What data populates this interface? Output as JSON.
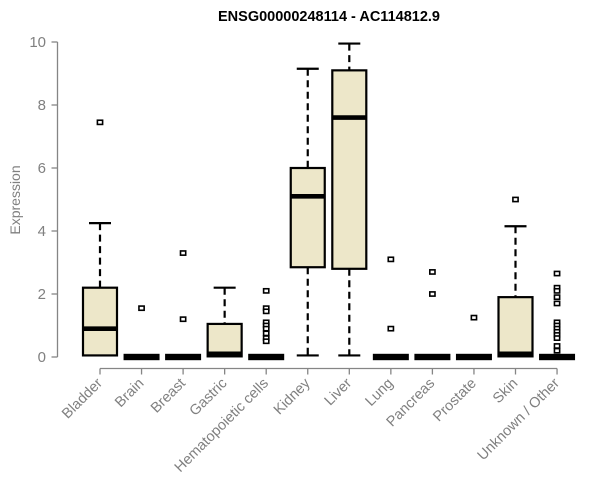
{
  "chart_data": {
    "type": "boxplot",
    "title": "ENSG00000248114 - AC114812.9",
    "ylabel": "Expression",
    "xlabel": "",
    "ylim": [
      0,
      10
    ],
    "yticks": [
      0,
      2,
      4,
      6,
      8,
      10
    ],
    "grid": false,
    "legend_position": "none",
    "colors": {
      "box_fill": "#EDE7C9",
      "box_border": "#000000",
      "axis": "#858585",
      "tick_label": "#808080",
      "title": "#000000",
      "background": "#FFFFFF"
    },
    "categories": [
      "Bladder",
      "Brain",
      "Breast",
      "Gastric",
      "Hematopoietic cells",
      "Kidney",
      "Liver",
      "Lung",
      "Pancreas",
      "Prostate",
      "Skin",
      "Unknown / Other"
    ],
    "groups": [
      {
        "label": "Bladder",
        "collapsed": false,
        "stats": {
          "whisker_low": 0.05,
          "q1": 0.05,
          "median": 0.9,
          "q3": 2.2,
          "whisker_high": 4.25
        },
        "outliers": [
          7.45
        ]
      },
      {
        "label": "Brain",
        "collapsed": true,
        "flat_value": 0,
        "outliers": [
          1.55
        ]
      },
      {
        "label": "Breast",
        "collapsed": true,
        "flat_value": 0,
        "outliers": [
          3.3,
          1.2
        ]
      },
      {
        "label": "Gastric",
        "collapsed": false,
        "stats": {
          "whisker_low": 0.02,
          "q1": 0.02,
          "median": 0.1,
          "q3": 1.05,
          "whisker_high": 2.2
        },
        "outliers": []
      },
      {
        "label": "Hematopoietic cells",
        "collapsed": true,
        "flat_value": 0,
        "outliers": [
          2.1,
          1.55,
          1.45,
          1.1,
          1.0,
          0.9,
          0.75,
          0.6,
          0.5
        ]
      },
      {
        "label": "Kidney",
        "collapsed": false,
        "stats": {
          "whisker_low": 0.05,
          "q1": 2.85,
          "median": 5.1,
          "q3": 6.0,
          "whisker_high": 9.15
        },
        "outliers": []
      },
      {
        "label": "Liver",
        "collapsed": false,
        "stats": {
          "whisker_low": 0.05,
          "q1": 2.8,
          "median": 7.6,
          "q3": 9.1,
          "whisker_high": 9.95
        },
        "outliers": []
      },
      {
        "label": "Lung",
        "collapsed": true,
        "flat_value": 0,
        "outliers": [
          3.1,
          0.9
        ]
      },
      {
        "label": "Pancreas",
        "collapsed": true,
        "flat_value": 0,
        "outliers": [
          2.7,
          2.0
        ]
      },
      {
        "label": "Prostate",
        "collapsed": true,
        "flat_value": 0,
        "outliers": [
          1.25
        ]
      },
      {
        "label": "Skin",
        "collapsed": false,
        "stats": {
          "whisker_low": 0.02,
          "q1": 0.02,
          "median": 0.1,
          "q3": 1.9,
          "whisker_high": 4.15
        },
        "outliers": [
          5.0
        ]
      },
      {
        "label": "Unknown / Other",
        "collapsed": true,
        "flat_value": 0,
        "outliers": [
          2.65,
          2.2,
          2.1,
          1.9,
          1.7,
          1.1,
          1.0,
          0.9,
          0.8,
          0.7,
          0.6,
          0.35,
          0.2
        ]
      }
    ]
  }
}
